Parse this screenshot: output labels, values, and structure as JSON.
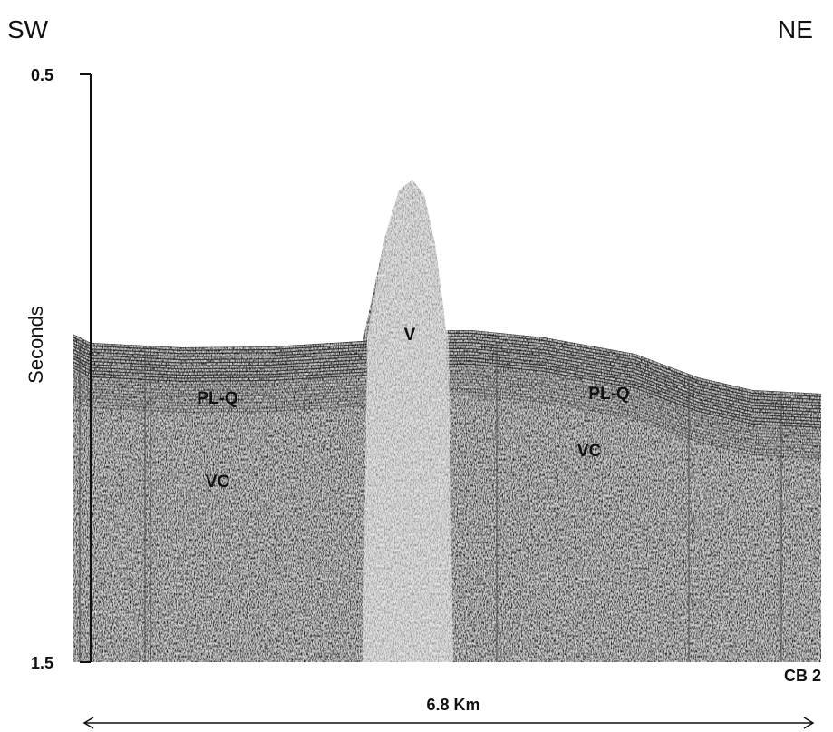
{
  "header": {
    "left": "SW",
    "right": "NE"
  },
  "axis": {
    "label": "Seconds",
    "ticks": [
      0.5,
      1.5
    ]
  },
  "annotations": [
    {
      "label": "V"
    },
    {
      "label": "PL-Q"
    },
    {
      "label": "PL-Q"
    },
    {
      "label": "VC"
    },
    {
      "label": "VC"
    }
  ],
  "profile_id": "CB 2",
  "scale": {
    "label": "6.8 Km"
  }
}
